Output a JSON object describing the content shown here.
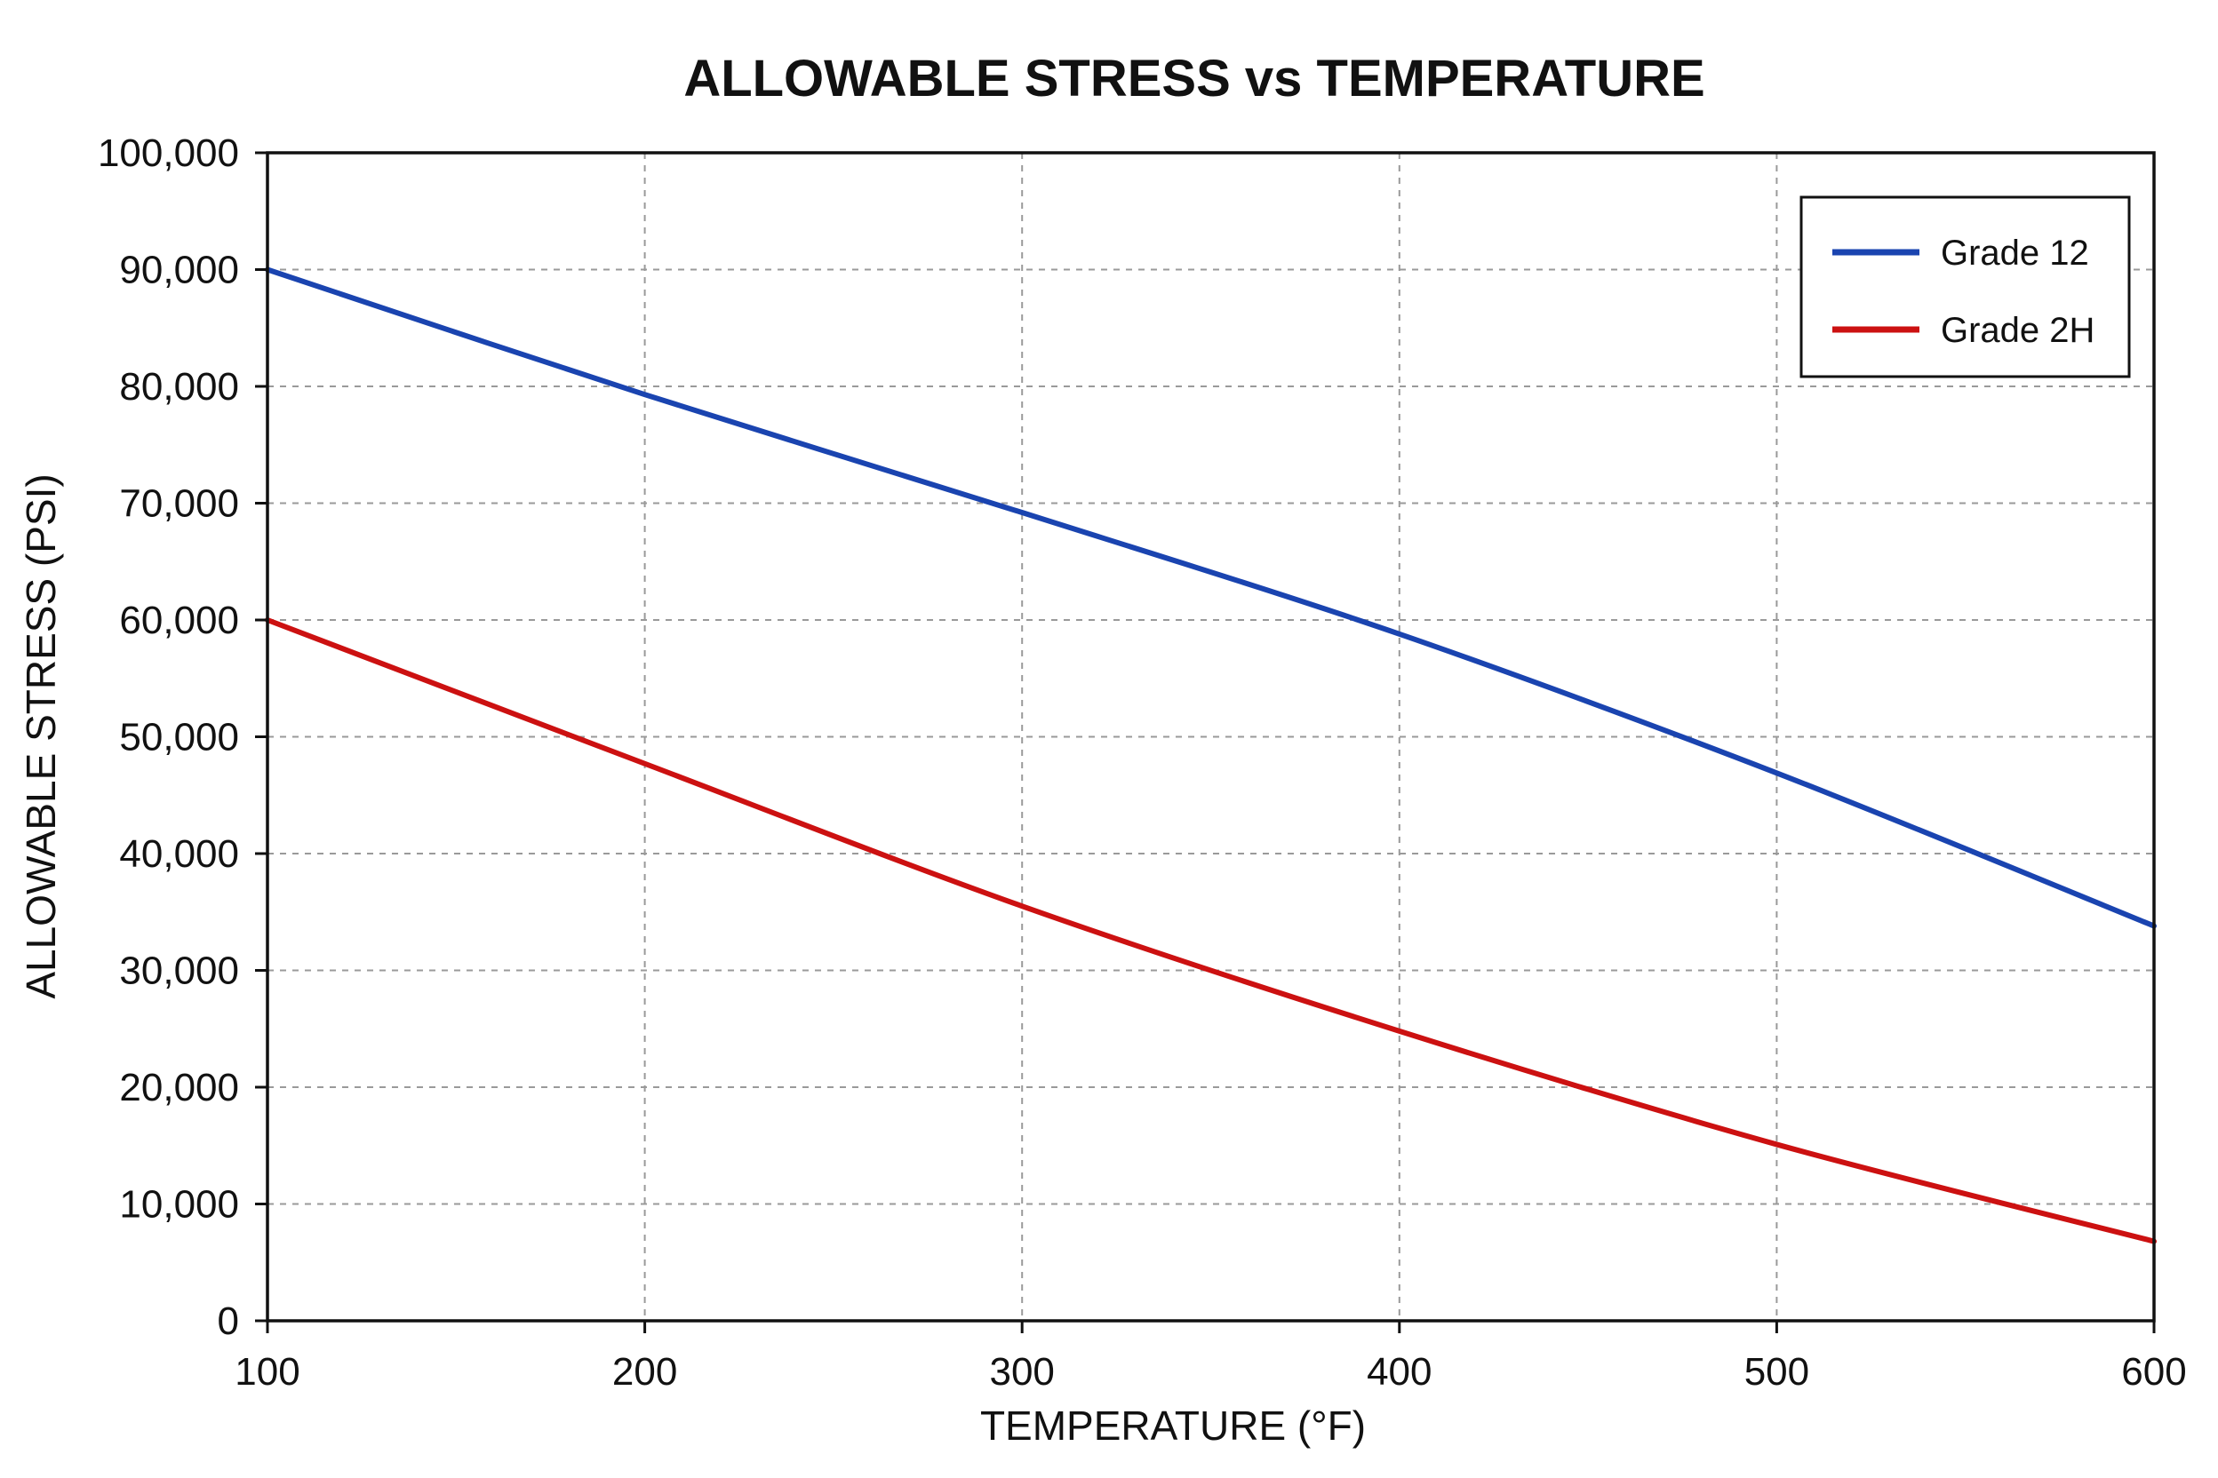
{
  "chart_data": {
    "type": "line",
    "title": "ALLOWABLE STRESS vs TEMPERATURE",
    "xlabel": "TEMPERATURE (°F)",
    "ylabel": "ALLOWABLE STRESS (PSI)",
    "xlim": [
      100,
      600
    ],
    "ylim": [
      0,
      100000
    ],
    "x_ticks": [
      100,
      200,
      300,
      400,
      500,
      600
    ],
    "x_tick_labels": [
      "100",
      "200",
      "300",
      "400",
      "500",
      "600"
    ],
    "y_ticks": [
      0,
      10000,
      20000,
      30000,
      40000,
      50000,
      60000,
      70000,
      80000,
      90000,
      100000
    ],
    "y_tick_labels": [
      "0",
      "10,000",
      "20,000",
      "30,000",
      "40,000",
      "50,000",
      "60,000",
      "70,000",
      "80,000",
      "90,000",
      "100,000"
    ],
    "grid": true,
    "legend_position": "top-right",
    "x": [
      100,
      200,
      300,
      400,
      500,
      600
    ],
    "series": [
      {
        "name": "Grade 12",
        "color": "#1a44b0",
        "values": [
          90000,
          79300,
          69200,
          58800,
          46900,
          33800
        ]
      },
      {
        "name": "Grade 2H",
        "color": "#cc1111",
        "values": [
          60000,
          47700,
          35500,
          24800,
          15100,
          6800
        ]
      }
    ]
  }
}
